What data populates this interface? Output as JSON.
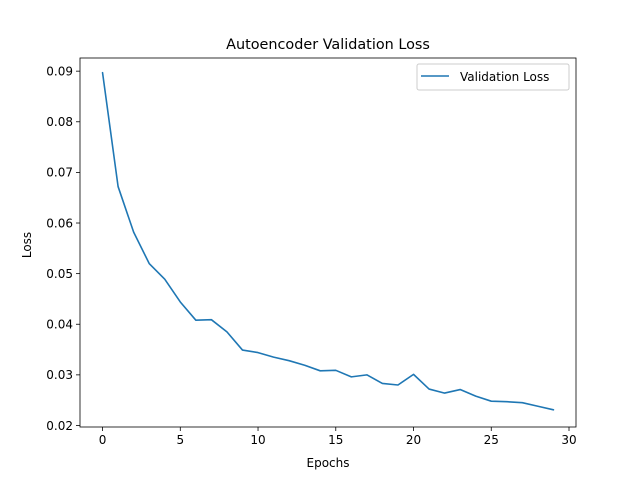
{
  "chart_data": {
    "type": "line",
    "title": "Autoencoder Validation Loss",
    "xlabel": "Epochs",
    "ylabel": "Loss",
    "xlim": [
      -1.45,
      30.45
    ],
    "ylim": [
      0.0197,
      0.0926
    ],
    "xticks": [
      0,
      5,
      10,
      15,
      20,
      25,
      30
    ],
    "xtick_labels": [
      "0",
      "5",
      "10",
      "15",
      "20",
      "25",
      "30"
    ],
    "yticks": [
      0.02,
      0.03,
      0.04,
      0.05,
      0.06,
      0.07,
      0.08,
      0.09
    ],
    "ytick_labels": [
      "0.02",
      "0.03",
      "0.04",
      "0.05",
      "0.06",
      "0.07",
      "0.08",
      "0.09"
    ],
    "grid": false,
    "legend_position": "top-right",
    "series": [
      {
        "name": "Validation Loss",
        "color": "#1f77b4",
        "x": [
          0,
          1,
          2,
          3,
          4,
          5,
          6,
          7,
          8,
          9,
          10,
          11,
          12,
          13,
          14,
          15,
          16,
          17,
          18,
          19,
          20,
          21,
          22,
          23,
          24,
          25,
          26,
          27,
          28,
          29
        ],
        "y": [
          0.0897,
          0.0672,
          0.0582,
          0.052,
          0.0489,
          0.0444,
          0.0408,
          0.0409,
          0.0385,
          0.0349,
          0.0344,
          0.0335,
          0.0328,
          0.0319,
          0.0308,
          0.0309,
          0.0296,
          0.03,
          0.0283,
          0.028,
          0.0301,
          0.0272,
          0.0264,
          0.0271,
          0.0258,
          0.0248,
          0.0247,
          0.0245,
          0.0238,
          0.0231
        ]
      }
    ]
  }
}
